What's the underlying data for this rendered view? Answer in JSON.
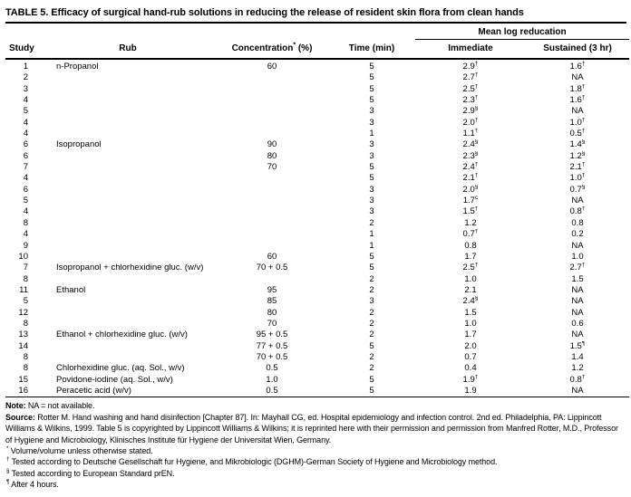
{
  "title": "TABLE 5. Efficacy of surgical hand-rub solutions in reducing the release of resident skin flora from clean hands",
  "table": {
    "span_header": "Mean log reducation",
    "columns": [
      "Study",
      "Rub",
      "Concentration^* (%)",
      "Time (min)",
      "Immediate",
      "Sustained (3 hr)"
    ],
    "rows": [
      [
        "1",
        "n-Propanol",
        "60",
        "5",
        "2.9^†",
        "1.6^†"
      ],
      [
        "2",
        "",
        "",
        "5",
        "2.7^†",
        "NA"
      ],
      [
        "3",
        "",
        "",
        "5",
        "2.5^†",
        "1.8^†"
      ],
      [
        "4",
        "",
        "",
        "5",
        "2.3^†",
        "1.6^†"
      ],
      [
        "5",
        "",
        "",
        "3",
        "2.9^§",
        "NA"
      ],
      [
        "4",
        "",
        "",
        "3",
        "2.0^†",
        "1.0^†"
      ],
      [
        "4",
        "",
        "",
        "1",
        "1.1^†",
        "0.5^†"
      ],
      [
        "6",
        "Isopropanol",
        "90",
        "3",
        "2.4^§",
        "1.4^§"
      ],
      [
        "6",
        "",
        "80",
        "3",
        "2.3^§",
        "1.2^§"
      ],
      [
        "7",
        "",
        "70",
        "5",
        "2.4^†",
        "2.1^†"
      ],
      [
        "4",
        "",
        "",
        "5",
        "2.1^†",
        "1.0^†"
      ],
      [
        "6",
        "",
        "",
        "3",
        "2.0^§",
        "0.7^§"
      ],
      [
        "5",
        "",
        "",
        "3",
        "1.7^c",
        "NA"
      ],
      [
        "4",
        "",
        "",
        "3",
        "1.5^†",
        "0.8^†"
      ],
      [
        "8",
        "",
        "",
        "2",
        "1.2",
        "0.8"
      ],
      [
        "4",
        "",
        "",
        "1",
        "0.7^†",
        "0.2"
      ],
      [
        "9",
        "",
        "",
        "1",
        "0.8",
        "NA"
      ],
      [
        "10",
        "",
        "60",
        "5",
        "1.7",
        "1.0"
      ],
      [
        "7",
        "Isopropanol + chlorhexidine gluc. (w/v)",
        "70 + 0.5",
        "5",
        "2.5^†",
        "2.7^†"
      ],
      [
        "8",
        "",
        "",
        "2",
        "1.0",
        "1.5"
      ],
      [
        "11",
        "Ethanol",
        "95",
        "2",
        "2.1",
        "NA"
      ],
      [
        "5",
        "",
        "85",
        "3",
        "2.4^§",
        "NA"
      ],
      [
        "12",
        "",
        "80",
        "2",
        "1.5",
        "NA"
      ],
      [
        "8",
        "",
        "70",
        "2",
        "1.0",
        "0.6"
      ],
      [
        "13",
        "Ethanol + chlorhexidine gluc. (w/v)",
        "95 + 0.5",
        "2",
        "1.7",
        "NA"
      ],
      [
        "14",
        "",
        "77 + 0.5",
        "5",
        "2.0",
        "1.5^¶"
      ],
      [
        "8",
        "",
        "70 + 0.5",
        "2",
        "0.7",
        "1.4"
      ],
      [
        "8",
        "Chlorhexidine gluc. (aq. Sol., w/v)",
        "0.5",
        "2",
        "0.4",
        "1.2"
      ],
      [
        "15",
        "Povidone-iodine (aq. Sol., w/v)",
        "1.0",
        "5",
        "1.9^†",
        "0.8^†"
      ],
      [
        "16",
        "Peracetic acid (w/v)",
        "0.5",
        "5",
        "1.9",
        "NA"
      ]
    ]
  },
  "footnotes": {
    "note_label": "Note:",
    "note_text": " NA = not available.",
    "source_label": "Source:",
    "source_text": " Rotter M. Hand washing and hand disinfection [Chapter 87]. In: Mayhall CG, ed. Hospital epidemiology and infection control. 2nd ed. Philadelphia, PA: Lippincott Williams & Wilkins, 1999. Table 5 is copyrighted by Lippincott Williams & Wilkins; it is reprinted here with their permission and permission from Manfred Rotter, M.D., Professor of Hygiene and Microbiology, Klinisches Institute für Hygiene der Universitat Wien, Germany.",
    "symbols": [
      "^* Volume/volume unless otherwise stated.",
      "^† Tested according to Deutsche Gesellschaft fur Hygiene, and Mikrobiologic (DGHM)-German Society of Hygiene and Microbiology method.",
      "^§ Tested according to European Standard prEN.",
      "^¶ After 4 hours."
    ]
  }
}
